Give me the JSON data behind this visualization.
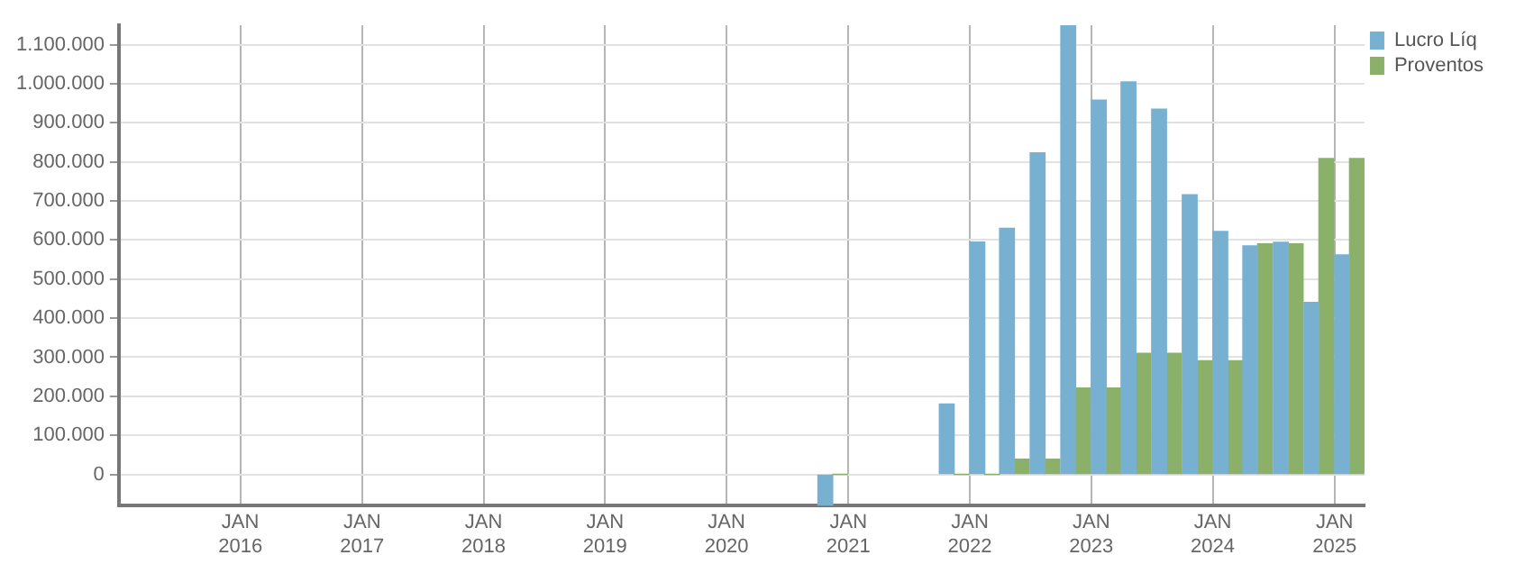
{
  "chart_data": {
    "type": "bar",
    "x": [
      "2020-11-15",
      "2021-11-15",
      "2022-02-15",
      "2022-05-15",
      "2022-08-15",
      "2022-11-15",
      "2023-02-15",
      "2023-05-15",
      "2023-08-15",
      "2023-11-15",
      "2024-02-15",
      "2024-05-15",
      "2024-08-15",
      "2024-11-15",
      "2025-02-15"
    ],
    "series": [
      {
        "name": "Lucro Líq",
        "color": "#77b0d1",
        "values": [
          -80000,
          180000,
          595000,
          630000,
          823000,
          1150000,
          958000,
          1005000,
          935000,
          716000,
          622000,
          585000,
          594000,
          440000,
          562000
        ]
      },
      {
        "name": "Proventos",
        "color": "#8bb06a",
        "values": [
          0,
          0,
          0,
          39000,
          39000,
          221000,
          221000,
          310000,
          310000,
          291000,
          291000,
          590000,
          590000,
          809000,
          809000
        ]
      }
    ],
    "xlim": [
      "2015-01",
      "2025-04"
    ],
    "xticks": [
      {
        "value": "2016-01",
        "label": "JAN 2016"
      },
      {
        "value": "2017-01",
        "label": "JAN 2017"
      },
      {
        "value": "2018-01",
        "label": "JAN 2018"
      },
      {
        "value": "2019-01",
        "label": "JAN 2019"
      },
      {
        "value": "2020-01",
        "label": "JAN 2020"
      },
      {
        "value": "2021-01",
        "label": "JAN 2021"
      },
      {
        "value": "2022-01",
        "label": "JAN 2022"
      },
      {
        "value": "2023-01",
        "label": "JAN 2023"
      },
      {
        "value": "2024-01",
        "label": "JAN 2024"
      },
      {
        "value": "2025-01",
        "label": "JAN 2025"
      }
    ],
    "ylim": [
      -80000,
      1150000
    ],
    "yticks": [
      0,
      {
        "value": 100000,
        "label": "100.000"
      },
      {
        "value": 200000,
        "label": "200.000"
      },
      {
        "value": 300000,
        "label": "300.000"
      },
      {
        "value": 400000,
        "label": "400.000"
      },
      {
        "value": 500000,
        "label": "500.000"
      },
      {
        "value": 600000,
        "label": "600.000"
      },
      {
        "value": 700000,
        "label": "700.000"
      },
      {
        "value": 800000,
        "label": "800.000"
      },
      {
        "value": 900000,
        "label": "900.000"
      },
      {
        "value": 1000000,
        "label": "1.000.000"
      },
      {
        "value": 1100000,
        "label": "1.100.000"
      }
    ],
    "grid": true,
    "legend": "top right"
  }
}
